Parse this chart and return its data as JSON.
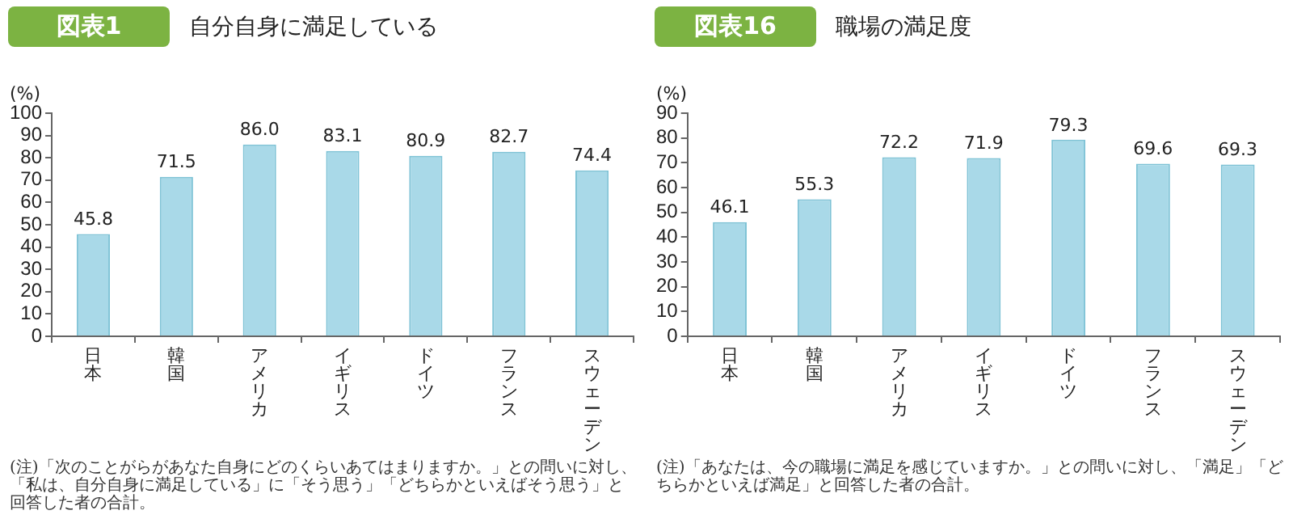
{
  "chart_data": [
    {
      "type": "bar",
      "title": "図表1",
      "subtitle": "自分自身に満足している",
      "ylabel": "(%)",
      "categories": [
        "日本",
        "韓国",
        "アメリカ",
        "イギリス",
        "ドイツ",
        "フランス",
        "スウェーデン"
      ],
      "values": [
        45.8,
        71.5,
        86.0,
        83.1,
        80.9,
        82.7,
        74.4
      ],
      "color": "#a9d9e8",
      "value_labels": [
        "45.8",
        "71.5",
        "86.0",
        "83.1",
        "80.9",
        "82.7",
        "74.4"
      ],
      "ylim": [
        0,
        100
      ],
      "yticks": [
        0,
        10,
        20,
        30,
        40,
        50,
        60,
        70,
        80,
        90,
        100
      ],
      "grid": false,
      "annotations": [
        "(注)「次のことがらがあなた自身にどのくらいあてはまりますか。」との問いに対し、「私は、自分自身に満足している」に「そう思う」「どちらかといえばそう思う」と回答した者の合計。"
      ]
    },
    {
      "type": "bar",
      "title": "図表16",
      "subtitle": "職場の満足度",
      "ylabel": "(%)",
      "categories": [
        "日本",
        "韓国",
        "アメリカ",
        "イギリス",
        "ドイツ",
        "フランス",
        "スウェーデン"
      ],
      "values": [
        46.1,
        55.3,
        72.2,
        71.9,
        79.3,
        69.6,
        69.3
      ],
      "color": "#a9d9e8",
      "value_labels": [
        "46.1",
        "55.3",
        "72.2",
        "71.9",
        "79.3",
        "69.6",
        "69.3"
      ],
      "ylim": [
        0,
        90
      ],
      "yticks": [
        0,
        10,
        20,
        30,
        40,
        50,
        60,
        70,
        80,
        90
      ],
      "grid": false,
      "annotations": [
        "(注)「あなたは、今の職場に満足を感じていますか。」との問いに対し、「満足」「どちらかといえば満足」と回答した者の合計。"
      ]
    }
  ]
}
